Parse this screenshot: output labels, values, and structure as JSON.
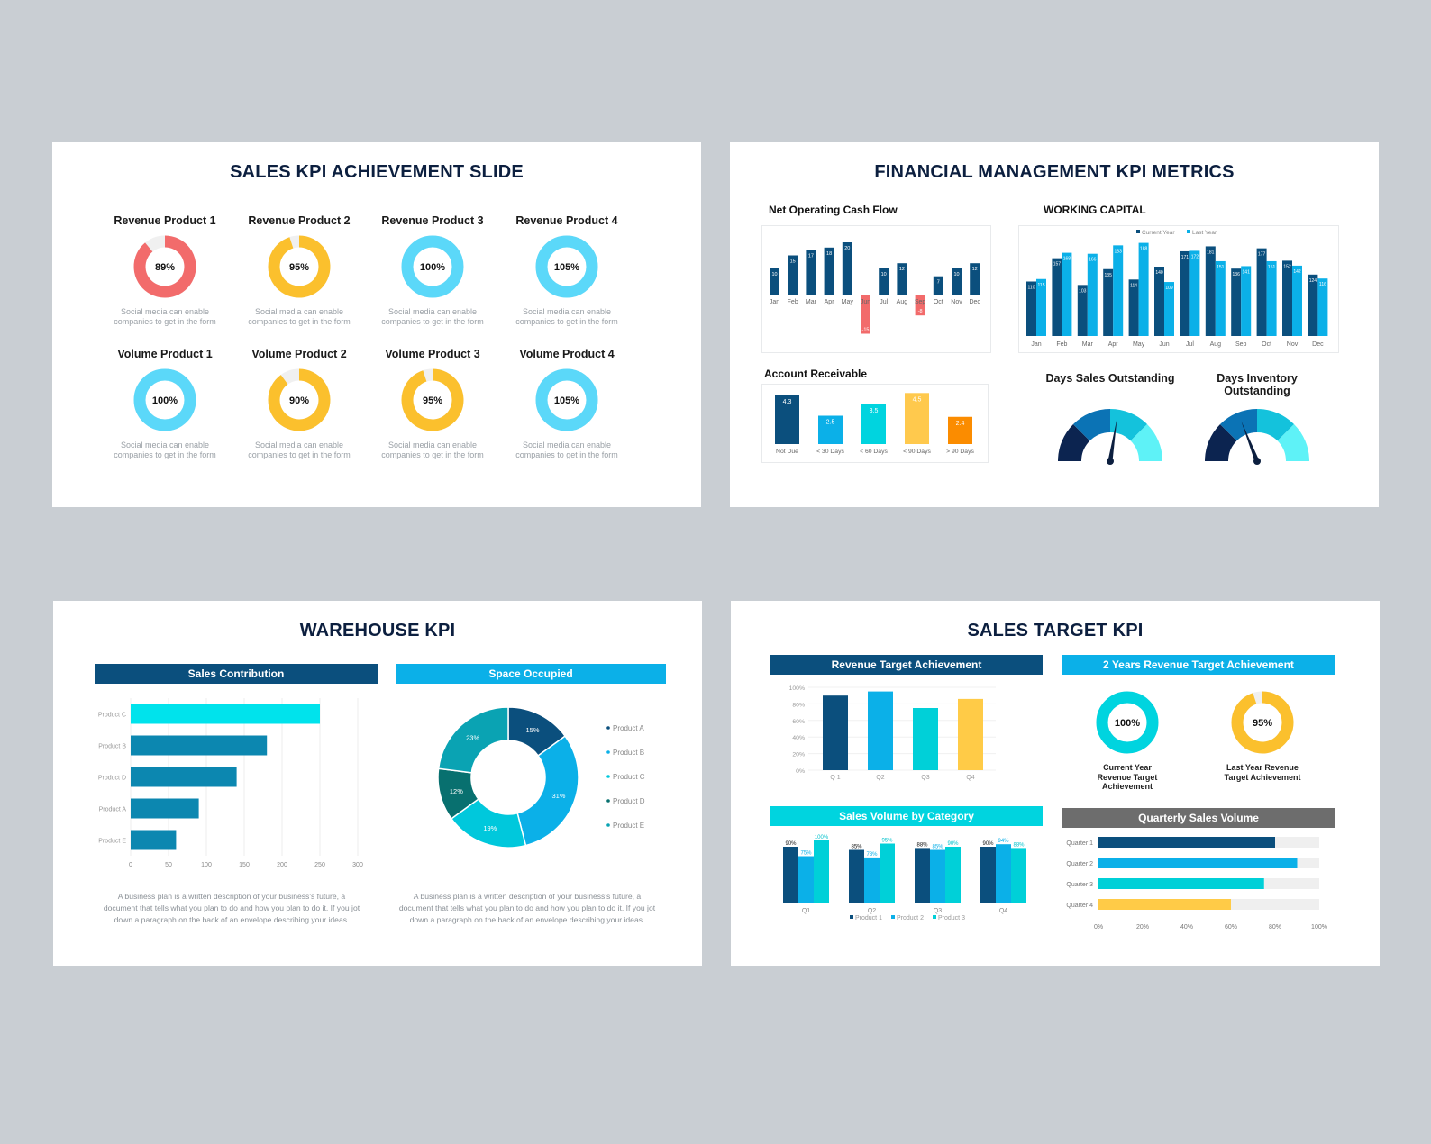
{
  "colors": {
    "navy": "#0b4f7d",
    "blue": "#0bb0e8",
    "cyan": "#00d4df",
    "yellow": "#fbc02d",
    "orange": "#fb8c00",
    "red": "#f26b6b",
    "gray": "#6d6d6d",
    "light": "#f0f0f0"
  },
  "slides": {
    "sales_kpi": {
      "title": "SALES KPI ACHIEVEMENT SLIDE",
      "caption": "Social media can enable companies to get in the form",
      "items": [
        {
          "label": "Revenue Product 1",
          "value": 89,
          "text": "89%",
          "color": "#f26b6b"
        },
        {
          "label": "Revenue Product 2",
          "value": 95,
          "text": "95%",
          "color": "#fbc02d"
        },
        {
          "label": "Revenue Product 3",
          "value": 100,
          "text": "100%",
          "color": "#5bd8f9"
        },
        {
          "label": "Revenue Product 4",
          "value": 105,
          "text": "105%",
          "color": "#5bd8f9"
        },
        {
          "label": "Volume Product 1",
          "value": 100,
          "text": "100%",
          "color": "#5bd8f9"
        },
        {
          "label": "Volume Product 2",
          "value": 90,
          "text": "90%",
          "color": "#fbc02d"
        },
        {
          "label": "Volume Product 3",
          "value": 95,
          "text": "95%",
          "color": "#fbc02d"
        },
        {
          "label": "Volume Product 4",
          "value": 105,
          "text": "105%",
          "color": "#5bd8f9"
        }
      ]
    },
    "financial": {
      "title": "FINANCIAL MANAGEMENT KPI METRICS",
      "days_sales_title": "Days Sales Outstanding",
      "days_inventory_title": "Days Inventory Outstanding"
    },
    "warehouse": {
      "title": "WAREHOUSE KPI",
      "sales_band": "Sales Contribution",
      "space_band": "Space Occupied",
      "paragraph": "A business plan is a written description of your business's future, a document that tells what you plan to do and how you plan to do it. If you jot down a paragraph on the back of an envelope describing your ideas."
    },
    "sales_target": {
      "title": "SALES TARGET KPI",
      "rev_band": "Revenue Target Achievement",
      "two_year_band": "2 Years Revenue Target Achievement",
      "volume_band": "Sales Volume by Category",
      "quarterly_band": "Quarterly Sales Volume",
      "current_year": {
        "value": 100,
        "text": "100%",
        "label": "Current Year Revenue Target Achievement"
      },
      "last_year": {
        "value": 95,
        "text": "95%",
        "label": "Last Year Revenue Target Achievement"
      }
    }
  },
  "chart_data": [
    {
      "id": "net_operating_cash_flow",
      "type": "bar",
      "title": "Net Operating Cash Flow",
      "categories": [
        "Jan",
        "Feb",
        "Mar",
        "Apr",
        "May",
        "Jun",
        "Jul",
        "Aug",
        "Sep",
        "Oct",
        "Nov",
        "Dec"
      ],
      "values": [
        10,
        15,
        17,
        18,
        20,
        -15,
        10,
        12,
        -8,
        7,
        10,
        12
      ]
    },
    {
      "id": "working_capital",
      "type": "bar",
      "title": "WORKING CAPITAL",
      "categories": [
        "Jan",
        "Feb",
        "Mar",
        "Apr",
        "May",
        "Jun",
        "Jul",
        "Aug",
        "Sep",
        "Oct",
        "Nov",
        "Dec"
      ],
      "series": [
        {
          "name": "Current Year",
          "values": [
            110,
            157,
            103,
            135,
            114,
            140,
            171,
            181,
            136,
            177,
            152,
            124
          ]
        },
        {
          "name": "Last Year",
          "values": [
            115,
            168,
            166,
            183,
            188,
            109,
            172,
            151,
            141,
            151,
            142,
            116
          ]
        }
      ],
      "legend": "top"
    },
    {
      "id": "account_receivable",
      "type": "bar",
      "title": "Account Receivable",
      "categories": [
        "Not Due",
        "< 30 Days",
        "< 60 Days",
        "< 90 Days",
        "> 90 Days"
      ],
      "values": [
        4.3,
        2.5,
        3.5,
        4.5,
        2.4
      ]
    },
    {
      "id": "sales_contribution",
      "type": "bar",
      "orientation": "horizontal",
      "categories": [
        "Product C",
        "Product B",
        "Product D",
        "Product A",
        "Product E"
      ],
      "values": [
        250,
        180,
        140,
        90,
        60
      ],
      "xticks": [
        "0",
        "50",
        "100",
        "150",
        "200",
        "250",
        "300"
      ],
      "xlim": [
        0,
        300
      ]
    },
    {
      "id": "space_occupied",
      "type": "pie",
      "donut": true,
      "slices": [
        {
          "label": "Product A",
          "value": 15,
          "text": "15%"
        },
        {
          "label": "Product B",
          "value": 31,
          "text": "31%"
        },
        {
          "label": "Product C",
          "value": 19,
          "text": "19%"
        },
        {
          "label": "Product D",
          "value": 12,
          "text": "12%"
        },
        {
          "label": "Product E",
          "value": 23,
          "text": "23%"
        }
      ],
      "legend": "right"
    },
    {
      "id": "revenue_target_achievement",
      "type": "bar",
      "categories": [
        "Q 1",
        "Q2",
        "Q3",
        "Q4"
      ],
      "values": [
        90,
        95,
        75,
        86
      ],
      "yticks": [
        "100%",
        "80%",
        "60%",
        "40%",
        "20%",
        "0%"
      ],
      "ylim": [
        0,
        100
      ]
    },
    {
      "id": "sales_volume_by_category",
      "type": "bar",
      "categories": [
        "Q1",
        "Q2",
        "Q3",
        "Q4"
      ],
      "series": [
        {
          "name": "Product 1",
          "values": [
            90,
            85,
            88,
            90
          ],
          "texts": [
            "90%",
            "85%",
            "88%",
            "90%"
          ]
        },
        {
          "name": "Product 2",
          "values": [
            75,
            73,
            85,
            94
          ],
          "texts": [
            "75%",
            "73%",
            "85%",
            "94%"
          ]
        },
        {
          "name": "Product 3",
          "values": [
            100,
            95,
            90,
            88
          ],
          "texts": [
            "100%",
            "95%",
            "90%",
            "88%"
          ]
        }
      ],
      "legend": "bottom"
    },
    {
      "id": "quarterly_sales_volume",
      "type": "bar",
      "orientation": "horizontal",
      "categories": [
        "Quarter 1",
        "Quarter 2",
        "Quarter 3",
        "Quarter 4"
      ],
      "values": [
        80,
        90,
        75,
        60
      ],
      "xticks": [
        "0%",
        "20%",
        "40%",
        "60%",
        "80%",
        "100%"
      ],
      "xlim": [
        0,
        100
      ]
    },
    {
      "id": "days_sales_outstanding",
      "type": "gauge",
      "value": 55
    },
    {
      "id": "days_inventory_outstanding",
      "type": "gauge",
      "value": 38
    }
  ]
}
